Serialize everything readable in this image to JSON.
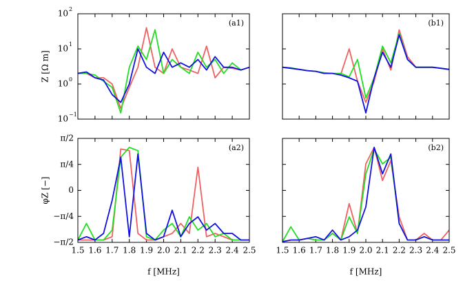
{
  "chart_data": [
    {
      "type": "line",
      "title": "(a1)",
      "ylabel": "Z [Ω m]",
      "scale": "log",
      "ylim": [
        0.1,
        100
      ],
      "yticks": [
        {
          "value": 0.1,
          "label": "10",
          "exponent": "−1"
        },
        {
          "value": 1,
          "label": "10",
          "exponent": "0"
        },
        {
          "value": 10,
          "label": "10",
          "exponent": "1"
        },
        {
          "value": 100,
          "label": "10",
          "exponent": "2"
        }
      ],
      "xlim": [
        1.5,
        2.5
      ],
      "x": [
        1.5,
        1.55,
        1.6,
        1.65,
        1.7,
        1.75,
        1.8,
        1.85,
        1.9,
        1.95,
        2.0,
        2.05,
        2.1,
        2.15,
        2.2,
        2.25,
        2.3,
        2.35,
        2.4,
        2.45,
        2.5
      ],
      "series": [
        {
          "color": "#f06060",
          "values": [
            2,
            2,
            1.5,
            1.5,
            1.0,
            0.2,
            0.8,
            3,
            40,
            3,
            2,
            10,
            3,
            2.5,
            2,
            12,
            1.5,
            3,
            2.8,
            2.5,
            3
          ]
        },
        {
          "color": "#22dd22",
          "values": [
            2,
            2,
            1.8,
            1.2,
            0.8,
            0.15,
            3,
            12,
            5,
            35,
            2,
            5,
            3,
            2,
            8,
            3,
            5,
            2,
            4,
            2.5,
            3
          ]
        },
        {
          "color": "#1010e0",
          "values": [
            2,
            2.2,
            1.5,
            1.3,
            0.5,
            0.3,
            1,
            10,
            3,
            2,
            8,
            3,
            4,
            3,
            5,
            2.5,
            6,
            3,
            3,
            2.5,
            3
          ]
        }
      ]
    },
    {
      "type": "line",
      "title": "(b1)",
      "scale": "log",
      "ylim": [
        0.1,
        100
      ],
      "xlim": [
        1.5,
        2.5
      ],
      "x": [
        1.5,
        1.55,
        1.6,
        1.65,
        1.7,
        1.75,
        1.8,
        1.85,
        1.9,
        1.95,
        2.0,
        2.05,
        2.1,
        2.15,
        2.2,
        2.25,
        2.3,
        2.35,
        2.4,
        2.45,
        2.5
      ],
      "series": [
        {
          "color": "#f06060",
          "values": [
            3,
            2.8,
            2.6,
            2.4,
            2.3,
            2,
            2,
            1.9,
            10,
            1.2,
            0.3,
            1.2,
            10,
            2.5,
            35,
            6,
            3,
            3,
            3,
            2.8,
            2.6
          ]
        },
        {
          "color": "#22dd22",
          "values": [
            3,
            2.9,
            2.6,
            2.4,
            2.3,
            2.1,
            2,
            2,
            1.6,
            5,
            0.4,
            1.5,
            12,
            4,
            28,
            5,
            3,
            3,
            3,
            2.8,
            2.6
          ]
        },
        {
          "color": "#1010e0",
          "values": [
            3,
            2.8,
            2.6,
            2.4,
            2.3,
            2,
            2,
            1.8,
            1.5,
            1.2,
            0.15,
            1.5,
            8,
            3,
            25,
            5,
            3,
            3,
            3,
            2.8,
            2.6
          ]
        }
      ]
    },
    {
      "type": "line",
      "title": "(a2)",
      "ylabel": "φZ [−]",
      "xlabel": "f [MHz]",
      "ylim": [
        -1.5708,
        1.5708
      ],
      "yticks": [
        {
          "value": -1.5708,
          "label": "−π/2"
        },
        {
          "value": -0.7854,
          "label": "−π/4"
        },
        0,
        {
          "value": 0.7854,
          "label": "π/4"
        },
        {
          "value": 1.5708,
          "label": "π/2"
        }
      ],
      "xlim": [
        1.5,
        2.5
      ],
      "xticks": [
        1.5,
        1.6,
        1.7,
        1.8,
        1.9,
        {
          "value": 2,
          "label": "2.0"
        },
        2.1,
        2.2,
        2.3,
        2.4,
        2.5
      ],
      "x": [
        1.5,
        1.55,
        1.6,
        1.65,
        1.7,
        1.75,
        1.8,
        1.85,
        1.9,
        1.95,
        2.0,
        2.05,
        2.1,
        2.15,
        2.2,
        2.25,
        2.3,
        2.35,
        2.4,
        2.45,
        2.5
      ],
      "series": [
        {
          "color": "#f06060",
          "values": [
            -1.5,
            -1.5,
            -1.5,
            -1.5,
            -1.4,
            1.25,
            1.2,
            -1.3,
            -1.5,
            -1.5,
            -1.4,
            -1.3,
            -1.0,
            -1.3,
            0.7,
            -1.4,
            -1.3,
            -1.4,
            -1.5,
            -1.5,
            -1.5
          ]
        },
        {
          "color": "#22dd22",
          "values": [
            -1.5,
            -1.0,
            -1.5,
            -1.5,
            -1.2,
            1.0,
            1.3,
            1.2,
            -1.4,
            -1.5,
            -1.2,
            -1.0,
            -1.4,
            -0.8,
            -1.2,
            -1.0,
            -1.4,
            -1.3,
            -1.5,
            -1.5,
            -1.5
          ]
        },
        {
          "color": "#1010e0",
          "values": [
            -1.5,
            -1.4,
            -1.5,
            -1.3,
            -0.3,
            1.0,
            -1.4,
            1.1,
            -1.3,
            -1.5,
            -1.4,
            -0.6,
            -1.4,
            -1.0,
            -0.8,
            -1.2,
            -1.0,
            -1.3,
            -1.3,
            -1.5,
            -1.5
          ]
        }
      ]
    },
    {
      "type": "line",
      "title": "(b2)",
      "xlabel": "f [MHz]",
      "ylim": [
        -1.5708,
        1.5708
      ],
      "xlim": [
        1.5,
        2.5
      ],
      "xticks": [
        1.5,
        1.6,
        1.7,
        1.8,
        1.9,
        {
          "value": 2,
          "label": "2.0"
        },
        2.1,
        2.2,
        2.3,
        2.4,
        2.5
      ],
      "x": [
        1.5,
        1.55,
        1.6,
        1.65,
        1.7,
        1.75,
        1.8,
        1.85,
        1.9,
        1.95,
        2.0,
        2.05,
        2.1,
        2.15,
        2.2,
        2.25,
        2.3,
        2.35,
        2.4,
        2.45,
        2.5
      ],
      "series": [
        {
          "color": "#f06060",
          "values": [
            -1.55,
            -1.5,
            -1.5,
            -1.45,
            -1.5,
            -1.5,
            -1.3,
            -1.5,
            -0.4,
            -1.3,
            0.8,
            1.3,
            0.3,
            0.9,
            -0.8,
            -1.5,
            -1.5,
            -1.3,
            -1.5,
            -1.5,
            -1.2
          ]
        },
        {
          "color": "#22dd22",
          "values": [
            -1.55,
            -1.1,
            -1.5,
            -1.45,
            -1.5,
            -1.5,
            -1.3,
            -1.5,
            -0.8,
            -1.3,
            0.5,
            1.25,
            0.8,
            1.0,
            -1.0,
            -1.5,
            -1.5,
            -1.4,
            -1.5,
            -1.5,
            -1.5
          ]
        },
        {
          "color": "#1010e0",
          "values": [
            -1.55,
            -1.5,
            -1.5,
            -1.45,
            -1.4,
            -1.5,
            -1.2,
            -1.5,
            -1.4,
            -1.2,
            -0.5,
            1.3,
            0.5,
            1.1,
            -1.0,
            -1.5,
            -1.5,
            -1.4,
            -1.5,
            -1.5,
            -1.5
          ]
        }
      ]
    }
  ]
}
